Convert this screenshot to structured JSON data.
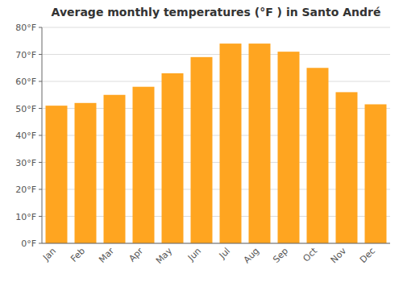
{
  "chart_data": {
    "type": "bar",
    "title": "Average monthly temperatures (°F ) in Santo André",
    "categories": [
      "Jan",
      "Feb",
      "Mar",
      "Apr",
      "May",
      "Jun",
      "Jul",
      "Aug",
      "Sep",
      "Oct",
      "Nov",
      "Dec"
    ],
    "values": [
      51,
      52,
      55,
      58,
      63,
      69,
      74,
      74,
      71,
      65,
      56,
      51.5
    ],
    "color": "#FFA520",
    "ylim": [
      0,
      80
    ],
    "yticks": [
      {
        "value": 0,
        "label": "0°F"
      },
      {
        "value": 10,
        "label": "10°F"
      },
      {
        "value": 20,
        "label": "20°F"
      },
      {
        "value": 30,
        "label": "30°F"
      },
      {
        "value": 40,
        "label": "40°F"
      },
      {
        "value": 50,
        "label": "50°F"
      },
      {
        "value": 60,
        "label": "60°F"
      },
      {
        "value": 70,
        "label": "70°F"
      },
      {
        "value": 80,
        "label": "80°F"
      }
    ],
    "grid": true
  }
}
